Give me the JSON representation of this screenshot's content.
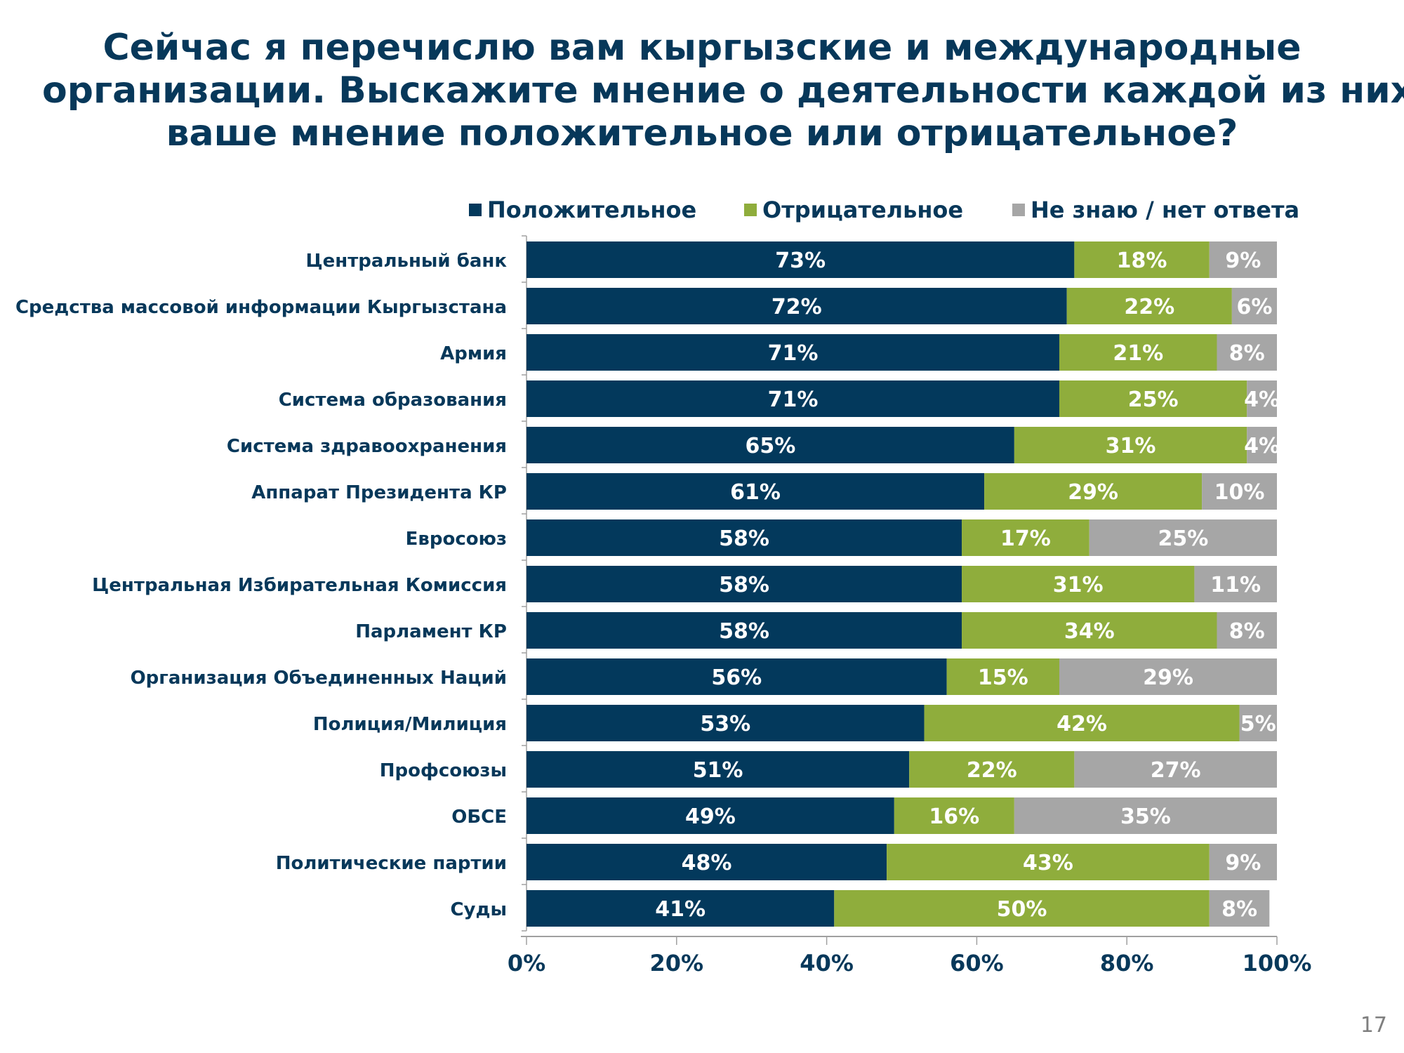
{
  "title": {
    "lines": [
      "Сейчас я перечислю вам кыргызские и международные",
      "организации. Выскажите мнение о деятельности каждой из них –",
      "ваше мнение положительное или отрицательное?"
    ]
  },
  "page_number": "17",
  "chart_data": {
    "type": "bar",
    "orientation": "horizontal",
    "stacked": "percent",
    "categories": [
      "Центральный банк",
      "Средства массовой информации Кыргызстана",
      "Армия",
      "Система образования",
      "Система здравоохранения",
      "Аппарат Президента КР",
      "Евросоюз",
      "Центральная Избирательная Комиссия",
      "Парламент КР",
      "Организация Объединенных Наций",
      "Полиция/Милиция",
      "Профсоюзы",
      "ОБСЕ",
      "Политические партии",
      "Суды"
    ],
    "series": [
      {
        "name": "Положительное",
        "color": "#03395c",
        "values": [
          73,
          72,
          71,
          71,
          65,
          61,
          58,
          58,
          58,
          56,
          53,
          51,
          49,
          48,
          41
        ]
      },
      {
        "name": "Отрицательное",
        "color": "#8fad3c",
        "values": [
          18,
          22,
          21,
          25,
          31,
          29,
          17,
          31,
          34,
          15,
          42,
          22,
          16,
          43,
          50
        ]
      },
      {
        "name": "Не знаю / нет ответа",
        "color": "#a6a6a6",
        "values": [
          9,
          6,
          8,
          4,
          4,
          10,
          25,
          11,
          8,
          29,
          5,
          27,
          35,
          9,
          8
        ]
      }
    ],
    "xticks": [
      "0%",
      "20%",
      "40%",
      "60%",
      "80%",
      "100%"
    ],
    "xlim": [
      0,
      100
    ],
    "legend_position": "top",
    "data_labels": true,
    "grid": false
  }
}
